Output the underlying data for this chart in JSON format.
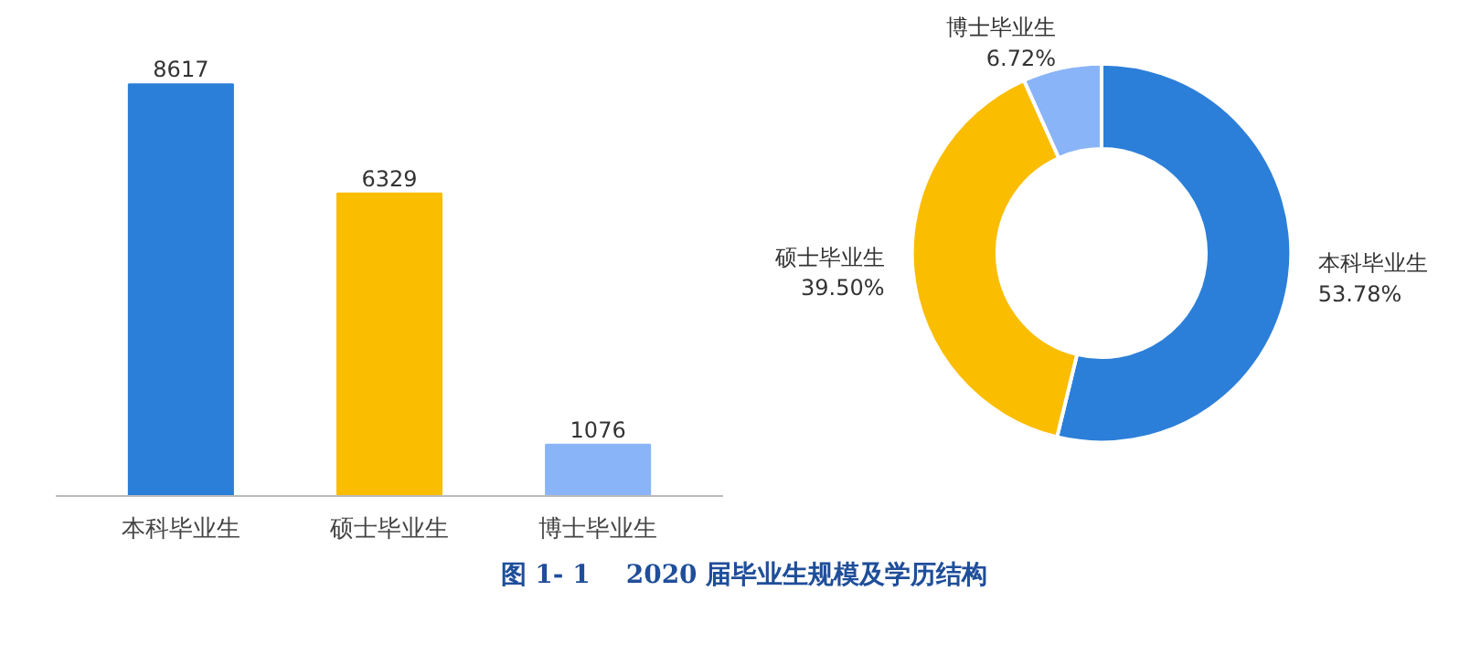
{
  "chart_data": [
    {
      "type": "bar",
      "categories": [
        "本科毕业生",
        "硕士毕业生",
        "博士毕业生"
      ],
      "values": [
        8617,
        6329,
        1076
      ],
      "colors": [
        "#2b7fd8",
        "#fbbd00",
        "#8ab4f8"
      ],
      "tick_labels": "x",
      "data_labels": true,
      "grid": false,
      "annotations": [
        "图 1- 1    2020 届毕业生规模及学历结构"
      ]
    },
    {
      "type": "donut",
      "categories": [
        "本科毕业生",
        "硕士毕业生",
        "博士毕业生"
      ],
      "values": [
        53.78,
        39.5,
        6.72
      ],
      "colors": [
        "#2b7fd8",
        "#fbbd00",
        "#8ab4f8"
      ],
      "value_labels": [
        "53.78%",
        "39.50%",
        "6.72%"
      ]
    }
  ]
}
